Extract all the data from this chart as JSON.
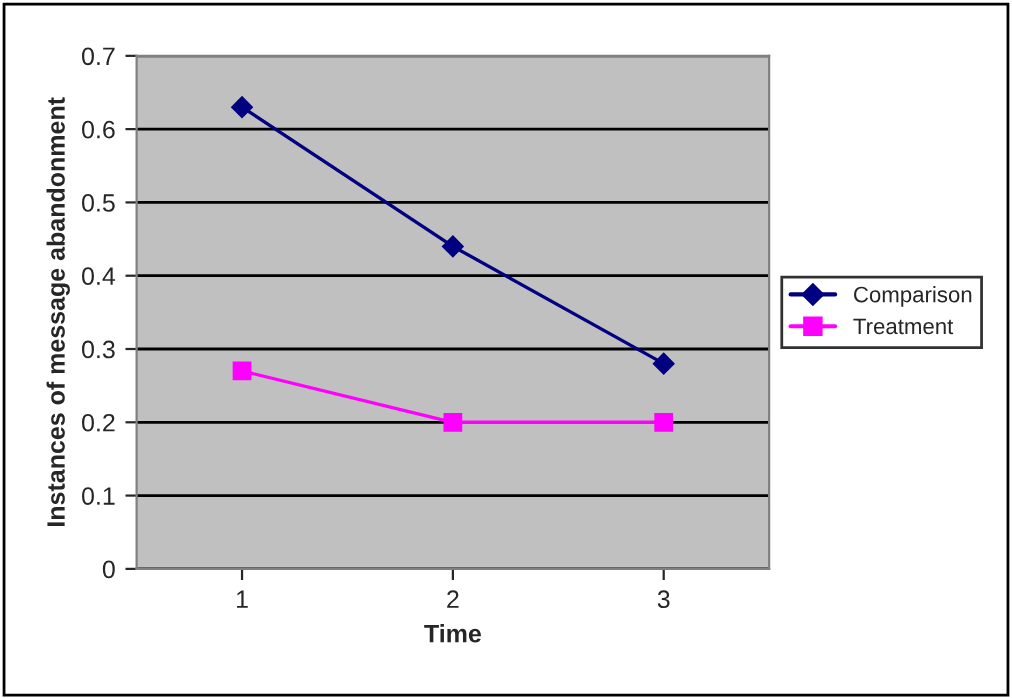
{
  "chart_data": {
    "type": "line",
    "xlabel": "Time",
    "ylabel": "Instances of message abandonment",
    "categories": [
      "1",
      "2",
      "3"
    ],
    "series": [
      {
        "name": "Comparison",
        "color": "#000080",
        "marker": "diamond",
        "values": [
          0.63,
          0.44,
          0.28
        ]
      },
      {
        "name": "Treatment",
        "color": "#ff00ff",
        "marker": "square",
        "values": [
          0.27,
          0.2,
          0.2
        ]
      }
    ],
    "ylim": [
      0,
      0.7
    ],
    "yticks": [
      0,
      0.1,
      0.2,
      0.3,
      0.4,
      0.5,
      0.6,
      0.7
    ],
    "grid": "y",
    "legend": "right",
    "line_style": "solid"
  }
}
